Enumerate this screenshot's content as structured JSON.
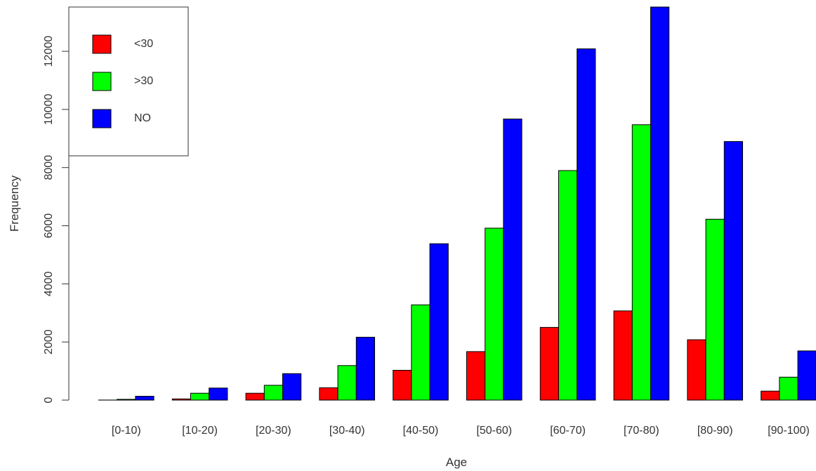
{
  "chart_data": {
    "type": "bar",
    "title": "",
    "xlabel": "Age",
    "ylabel": "Frequency",
    "categories": [
      "[0-10)",
      "[10-20)",
      "[20-30)",
      "[30-40)",
      "[40-50)",
      "[50-60)",
      "[60-70)",
      "[70-80)",
      "[80-90)",
      "[90-100)"
    ],
    "series": [
      {
        "name": "<30",
        "color": "#ff0000",
        "values": [
          3,
          40,
          236,
          424,
          1027,
          1668,
          2502,
          3069,
          2078,
          310
        ]
      },
      {
        "name": ">30",
        "color": "#00ff00",
        "values": [
          26,
          236,
          510,
          1187,
          3278,
          5917,
          7897,
          9475,
          6223,
          789
        ]
      },
      {
        "name": "NO",
        "color": "#0000ff",
        "values": [
          132,
          415,
          911,
          2164,
          5380,
          9671,
          12084,
          13524,
          8896,
          1694
        ]
      }
    ],
    "ylim": [
      0,
      13524
    ],
    "yticks": [
      "0",
      "2000",
      "4000",
      "6000",
      "8000",
      "10000",
      "12000"
    ],
    "legend_position": "top-left",
    "grid": false
  }
}
